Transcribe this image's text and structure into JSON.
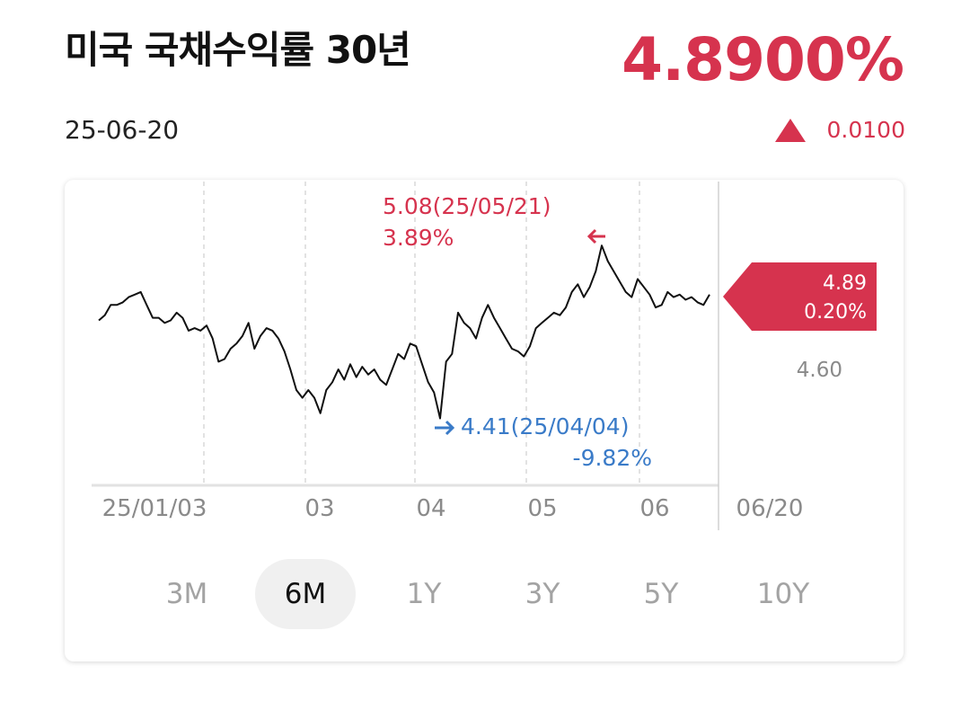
{
  "header": {
    "title": "미국 국채수익률 30년",
    "price": "4.8900%",
    "date": "25-06-20",
    "change": "0.0100",
    "change_icon": "triangle-up-icon"
  },
  "colors": {
    "up": "#d6334e",
    "down": "#3a7bc8",
    "line": "#111111",
    "grid": "#d8d8d8"
  },
  "chart_data": {
    "type": "line",
    "x_tick_labels": [
      "25/01/03",
      "03",
      "04",
      "05",
      "06",
      "06/20"
    ],
    "y_tick_labels": [
      "4.60"
    ],
    "series": [
      {
        "values": [
          4.79,
          4.81,
          4.85,
          4.85,
          4.86,
          4.88,
          4.89,
          4.9,
          4.85,
          4.8,
          4.8,
          4.78,
          4.79,
          4.82,
          4.8,
          4.75,
          4.76,
          4.75,
          4.77,
          4.72,
          4.63,
          4.64,
          4.68,
          4.7,
          4.73,
          4.78,
          4.68,
          4.73,
          4.76,
          4.75,
          4.72,
          4.67,
          4.6,
          4.52,
          4.49,
          4.52,
          4.49,
          4.43,
          4.52,
          4.55,
          4.6,
          4.56,
          4.62,
          4.57,
          4.61,
          4.58,
          4.6,
          4.56,
          4.54,
          4.6,
          4.66,
          4.64,
          4.7,
          4.69,
          4.62,
          4.55,
          4.51,
          4.41,
          4.63,
          4.66,
          4.82,
          4.78,
          4.76,
          4.72,
          4.8,
          4.85,
          4.8,
          4.76,
          4.72,
          4.68,
          4.67,
          4.65,
          4.69,
          4.76,
          4.78,
          4.8,
          4.82,
          4.81,
          4.84,
          4.9,
          4.93,
          4.88,
          4.92,
          4.98,
          5.08,
          5.02,
          4.98,
          4.94,
          4.9,
          4.88,
          4.95,
          4.92,
          4.89,
          4.84,
          4.85,
          4.9,
          4.88,
          4.89,
          4.87,
          4.88,
          4.86,
          4.85,
          4.89
        ],
        "min_label": "4.41(25/04/04)",
        "min_change": "-9.82%",
        "max_label": "5.08(25/05/21)",
        "max_change": "3.89%"
      }
    ],
    "current_value": "4.89",
    "current_change": "0.20%",
    "grid": true,
    "grid_style": "vertical dashed"
  },
  "periods": [
    {
      "label": "3M",
      "active": false
    },
    {
      "label": "6M",
      "active": true
    },
    {
      "label": "1Y",
      "active": false
    },
    {
      "label": "3Y",
      "active": false
    },
    {
      "label": "5Y",
      "active": false
    },
    {
      "label": "10Y",
      "active": false
    }
  ]
}
